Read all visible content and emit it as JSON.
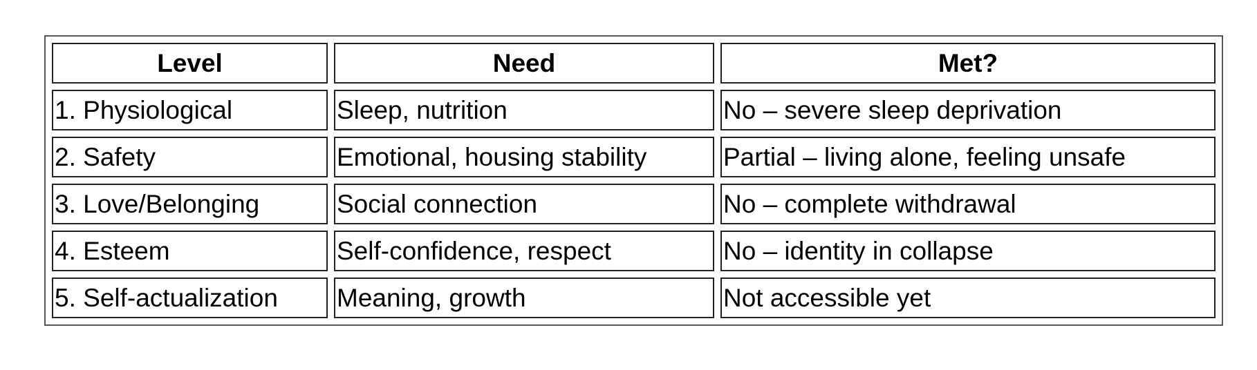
{
  "table": {
    "header": [
      "Level",
      "Need",
      "Met?"
    ],
    "rows": [
      [
        "1. Physiological",
        "Sleep, nutrition",
        "No – severe sleep deprivation"
      ],
      [
        "2. Safety",
        "Emotional, housing stability",
        "Partial – living alone, feeling unsafe"
      ],
      [
        "3. Love/Belonging",
        "Social connection",
        "No – complete withdrawal"
      ],
      [
        "4. Esteem",
        "Self-confidence, respect",
        "No – identity in collapse"
      ],
      [
        "5. Self-actualization",
        "Meaning, growth",
        "Not accessible yet"
      ]
    ]
  }
}
